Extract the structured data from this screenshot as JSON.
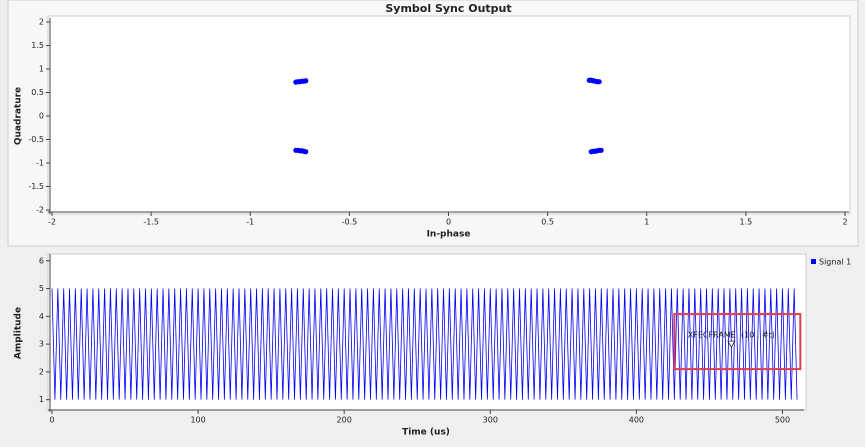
{
  "chart_data": [
    {
      "type": "scatter",
      "title": "Symbol Sync Output",
      "x_label": "In-phase",
      "y_label": "Quadrature",
      "x": [
        -0.77,
        -0.76,
        -0.75,
        -0.74,
        -0.73,
        -0.72,
        0.71,
        0.72,
        0.73,
        0.74,
        0.75,
        0.76,
        -0.77,
        -0.76,
        -0.75,
        -0.74,
        -0.73,
        -0.72,
        0.72,
        0.73,
        0.74,
        0.75,
        0.76,
        0.77
      ],
      "y": [
        0.72,
        0.73,
        0.73,
        0.74,
        0.74,
        0.75,
        0.76,
        0.76,
        0.75,
        0.74,
        0.73,
        0.73,
        -0.73,
        -0.73,
        -0.74,
        -0.74,
        -0.75,
        -0.76,
        -0.76,
        -0.75,
        -0.75,
        -0.74,
        -0.73,
        -0.73
      ],
      "color": "#0000ff",
      "xlim": [
        -2,
        2
      ],
      "ylim": [
        -2,
        2
      ],
      "xticks": [
        -2,
        -1.5,
        -1,
        -0.5,
        0,
        0.5,
        1,
        1.5,
        2
      ],
      "yticks": [
        -2,
        -1.5,
        -1,
        -0.5,
        0,
        0.5,
        1,
        1.5,
        2
      ]
    },
    {
      "type": "line",
      "x_label": "Time (us)",
      "y_label": "Amplitude",
      "x": [
        0,
        2,
        4,
        6,
        8,
        10,
        12,
        14,
        16,
        18,
        20,
        22,
        24,
        26,
        28,
        30,
        32,
        34,
        36,
        38,
        40,
        42,
        44,
        46,
        48,
        50,
        52,
        54,
        56,
        58,
        60,
        62,
        64,
        66,
        68,
        70,
        72,
        74,
        76,
        78,
        80,
        82,
        84,
        86,
        88,
        90,
        92,
        94,
        96,
        98,
        100,
        102,
        104,
        106,
        108,
        110,
        112,
        114,
        116,
        118,
        120,
        122,
        124,
        126,
        128,
        130,
        132,
        134,
        136,
        138,
        140,
        142,
        144,
        146,
        148,
        150,
        152,
        154,
        156,
        158,
        160,
        162,
        164,
        166,
        168,
        170,
        172,
        174,
        176,
        178,
        180,
        182,
        184,
        186,
        188,
        190,
        192,
        194,
        196,
        198,
        200,
        202,
        204,
        206,
        208,
        210,
        212,
        214,
        216,
        218,
        220,
        222,
        224,
        226,
        228,
        230,
        232,
        234,
        236,
        238,
        240,
        242,
        244,
        246,
        248,
        250,
        252,
        254,
        256,
        258,
        260,
        262,
        264,
        266,
        268,
        270,
        272,
        274,
        276,
        278,
        280,
        282,
        284,
        286,
        288,
        290,
        292,
        294,
        296,
        298,
        300,
        302,
        304,
        306,
        308,
        310,
        312,
        314,
        316,
        318,
        320,
        322,
        324,
        326,
        328,
        330,
        332,
        334,
        336,
        338,
        340,
        342,
        344,
        346,
        348,
        350,
        352,
        354,
        356,
        358,
        360,
        362,
        364,
        366,
        368,
        370,
        372,
        374,
        376,
        378,
        380,
        382,
        384,
        386,
        388,
        390,
        392,
        394,
        396,
        398,
        400,
        402,
        404,
        406,
        408,
        410,
        412,
        414,
        416,
        418,
        420,
        422,
        424,
        426,
        428,
        430,
        432,
        434,
        436,
        438,
        440,
        442,
        444,
        446,
        448,
        450,
        452,
        454,
        456,
        458,
        460,
        462,
        464,
        466,
        468,
        470,
        472,
        474,
        476,
        478,
        480,
        482,
        484,
        486,
        488,
        490,
        492,
        494,
        496,
        498,
        500,
        502,
        504,
        506,
        508,
        510
      ],
      "series": [
        {
          "name": "Signal 1",
          "color": "#0000ff",
          "values": [
            5,
            1,
            5,
            1,
            5,
            1,
            5,
            1,
            5,
            1,
            5,
            1,
            5,
            1,
            5,
            1,
            5,
            1,
            5,
            1,
            5,
            1,
            5,
            1,
            5,
            1,
            5,
            1,
            5,
            1,
            5,
            1,
            5,
            1,
            5,
            1,
            5,
            1,
            5,
            1,
            5,
            1,
            5,
            1,
            5,
            1,
            5,
            1,
            5,
            1,
            5,
            1,
            5,
            1,
            5,
            1,
            5,
            1,
            5,
            1,
            5,
            1,
            5,
            1,
            5,
            1,
            5,
            1,
            5,
            1,
            5,
            1,
            5,
            1,
            5,
            1,
            5,
            1,
            5,
            1,
            5,
            1,
            5,
            1,
            5,
            1,
            5,
            1,
            5,
            1,
            5,
            1,
            5,
            1,
            5,
            1,
            5,
            1,
            5,
            1,
            5,
            1,
            5,
            1,
            5,
            1,
            5,
            1,
            5,
            1,
            5,
            1,
            5,
            1,
            5,
            1,
            5,
            1,
            5,
            1,
            5,
            1,
            5,
            1,
            5,
            1,
            5,
            1,
            5,
            1,
            5,
            1,
            5,
            1,
            5,
            1,
            5,
            1,
            5,
            1,
            5,
            1,
            5,
            1,
            5,
            1,
            5,
            1,
            5,
            1,
            5,
            1,
            5,
            1,
            5,
            1,
            5,
            1,
            5,
            1,
            5,
            1,
            5,
            1,
            5,
            1,
            5,
            1,
            5,
            1,
            5,
            1,
            5,
            1,
            5,
            1,
            5,
            1,
            5,
            1,
            5,
            1,
            5,
            1,
            5,
            1,
            5,
            1,
            5,
            1,
            5,
            1,
            5,
            1,
            5,
            1,
            5,
            1,
            5,
            1,
            5,
            1,
            5,
            1,
            5,
            1,
            5,
            1,
            5,
            1,
            5,
            1,
            5,
            1,
            5,
            1,
            5,
            1,
            5,
            1,
            5,
            1,
            5,
            1,
            5,
            1,
            5,
            1,
            5,
            1,
            5,
            1,
            5,
            1,
            5,
            1,
            5,
            1,
            5,
            1,
            5,
            1,
            5,
            1,
            5,
            1,
            5,
            1,
            5,
            1,
            5,
            1,
            5,
            1,
            5,
            1
          ]
        }
      ],
      "annotations": [
        {
          "text": "XFECFRAME: (10 . #t)",
          "x": 465,
          "y": 3
        }
      ],
      "legend": "right",
      "xlim": [
        0,
        512
      ],
      "ylim": [
        0.7,
        6.1
      ],
      "xticks": [
        0,
        100,
        200,
        300,
        400,
        500
      ],
      "yticks": [
        1,
        2,
        3,
        4,
        5,
        6
      ]
    }
  ]
}
